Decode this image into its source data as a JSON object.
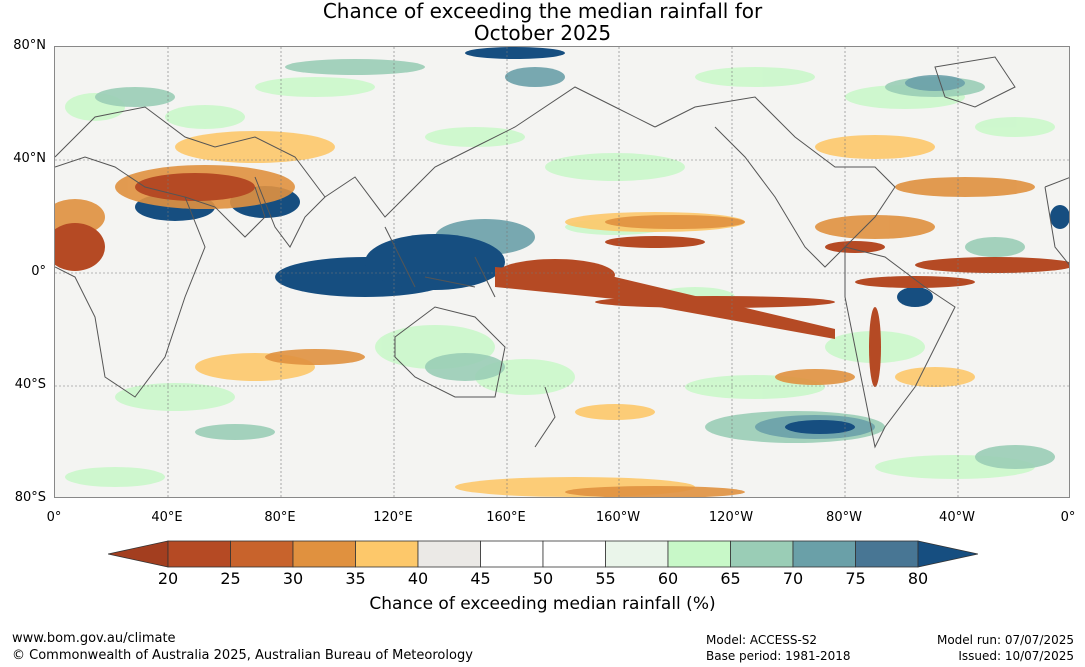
{
  "title": {
    "line1": "Chance of exceeding the median rainfall for",
    "line2": "October 2025"
  },
  "map": {
    "lat_labels": [
      "80°N",
      "40°N",
      "0°",
      "40°S",
      "80°S"
    ],
    "lon_labels": [
      "0°",
      "40°E",
      "80°E",
      "120°E",
      "160°E",
      "160°W",
      "120°W",
      "80°W",
      "40°W",
      "0°"
    ]
  },
  "colorbar": {
    "ticks": [
      "20",
      "25",
      "30",
      "35",
      "40",
      "45",
      "50",
      "55",
      "60",
      "65",
      "70",
      "75",
      "80"
    ],
    "colors": [
      "#a33e1f",
      "#b54a24",
      "#c8632c",
      "#e0913f",
      "#fdc86a",
      "#ebe9e6",
      "#ffffff",
      "#ffffff",
      "#eaf5ea",
      "#c8f8c8",
      "#9acdb6",
      "#6aa0a8",
      "#487694",
      "#164e80"
    ],
    "label": "Chance of exceeding median rainfall (%)"
  },
  "footer": {
    "url": "www.bom.gov.au/climate",
    "copyright": "© Commonwealth of Australia 2025, Australian Bureau of Meteorology",
    "model": "Model: ACCESS-S2",
    "base_period": "Base period: 1981-2018",
    "model_run": "Model run: 07/07/2025",
    "issued": "Issued: 10/07/2025"
  }
}
